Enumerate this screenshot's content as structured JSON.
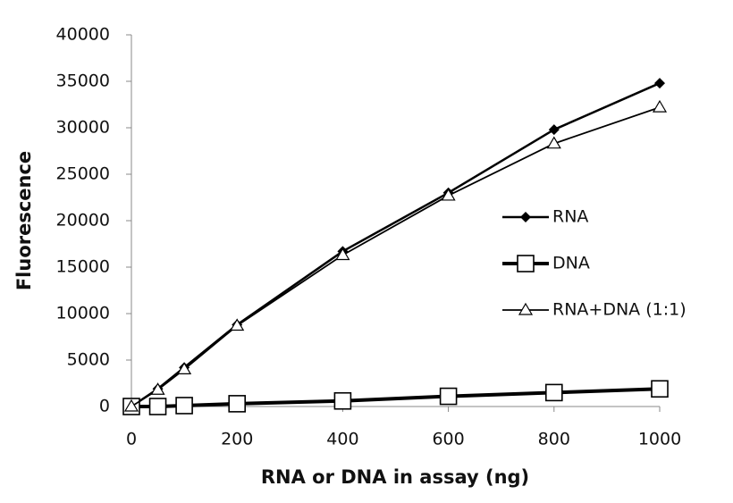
{
  "chart_data": {
    "type": "line",
    "xlabel": "RNA or DNA in assay (ng)",
    "ylabel": "Fluorescence",
    "x": [
      0,
      50,
      100,
      200,
      400,
      600,
      800,
      1000
    ],
    "series": [
      {
        "name": "RNA",
        "color": "#000000",
        "marker": "diamond",
        "line_width": 2.5,
        "values": [
          0,
          1900,
          4200,
          8800,
          16700,
          23000,
          29800,
          34800
        ]
      },
      {
        "name": "DNA",
        "color": "#000000",
        "marker": "square",
        "line_width": 4,
        "values": [
          0,
          0,
          100,
          300,
          600,
          1100,
          1500,
          1900
        ]
      },
      {
        "name": "RNA+DNA (1:1)",
        "color": "#000000",
        "marker": "triangle",
        "line_width": 1.8,
        "values": [
          0,
          1800,
          4000,
          8700,
          16300,
          22700,
          28300,
          32200
        ]
      }
    ],
    "xlim": [
      0,
      1000
    ],
    "xticks": [
      0,
      200,
      400,
      600,
      800,
      1000
    ],
    "ylim": [
      0,
      40000
    ],
    "yticks": [
      0,
      5000,
      10000,
      15000,
      20000,
      25000,
      30000,
      35000,
      40000
    ],
    "legend": "right",
    "grid": false
  }
}
